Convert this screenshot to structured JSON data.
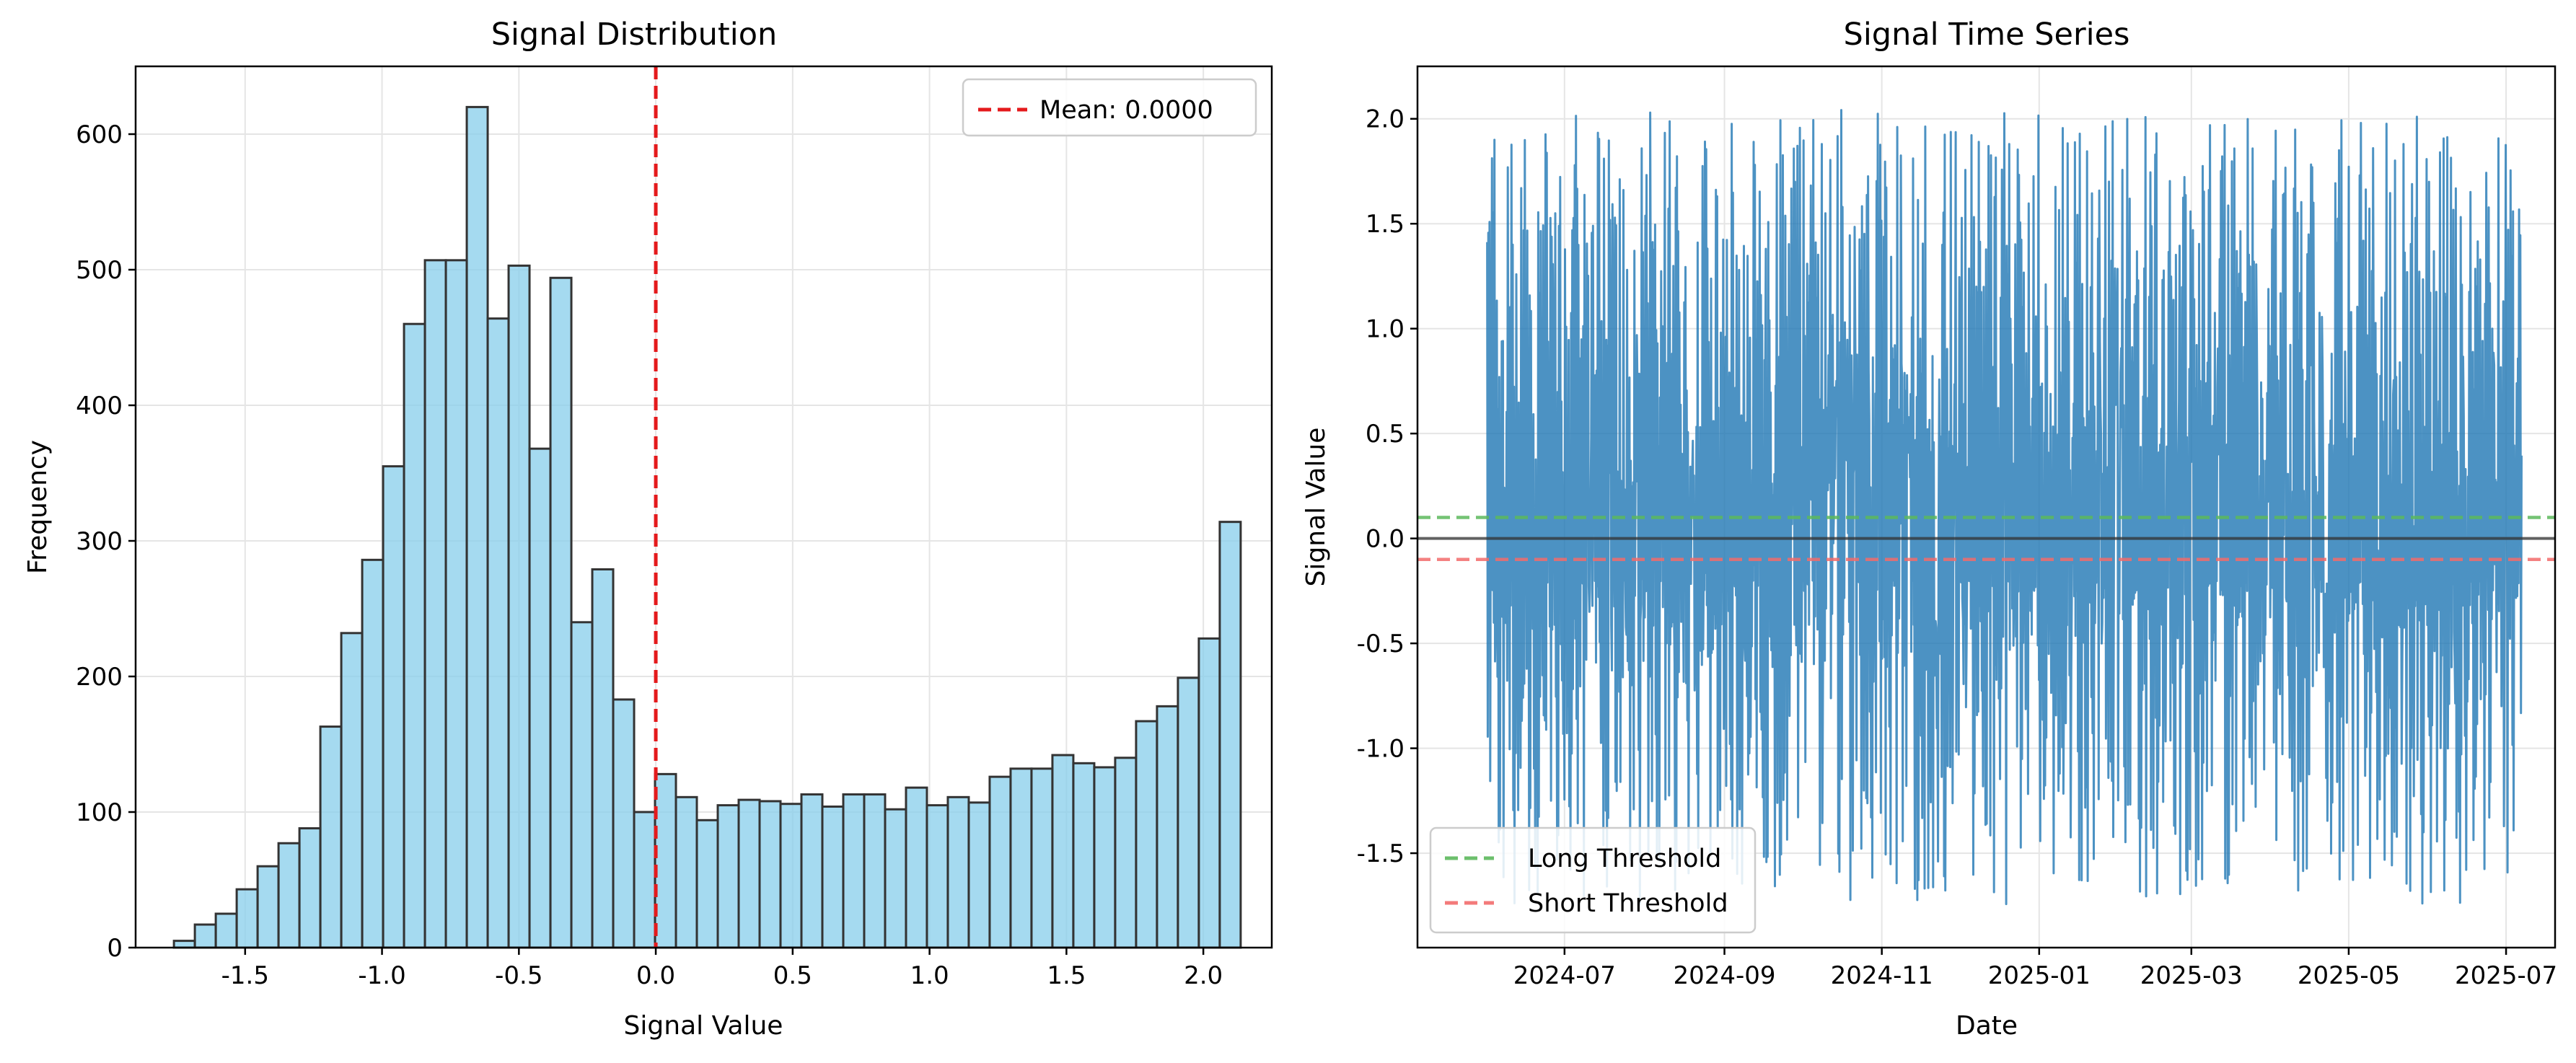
{
  "chart_data": [
    {
      "type": "bar",
      "title": "Signal Distribution",
      "xlabel": "Signal Value",
      "ylabel": "Frequency",
      "xlim": [
        -1.9,
        2.25
      ],
      "ylim": [
        0,
        650
      ],
      "xticks": [
        -1.5,
        -1.0,
        -0.5,
        0.0,
        0.5,
        1.0,
        1.5,
        2.0
      ],
      "xtick_labels": [
        "-1.5",
        "-1.0",
        "-0.5",
        "0.0",
        "0.5",
        "1.0",
        "1.5",
        "2.0"
      ],
      "yticks": [
        0,
        100,
        200,
        300,
        400,
        500,
        600
      ],
      "ytick_labels": [
        "0",
        "100",
        "200",
        "300",
        "400",
        "500",
        "600"
      ],
      "grid": true,
      "bar_color": "#87CEEB",
      "bar_edge_color": "#333333",
      "bin_start": -1.76,
      "bin_width": 0.0764,
      "values": [
        5,
        17,
        25,
        43,
        60,
        77,
        88,
        163,
        232,
        286,
        355,
        460,
        507,
        507,
        620,
        464,
        503,
        368,
        494,
        240,
        279,
        183,
        100,
        128,
        111,
        94,
        105,
        109,
        108,
        106,
        113,
        104,
        113,
        113,
        102,
        118,
        105,
        111,
        107,
        126,
        132,
        132,
        142,
        136,
        133,
        140,
        167,
        178,
        199,
        228,
        314
      ],
      "mean_line": {
        "x": 0.0,
        "label": "Mean: 0.0000",
        "color": "#e41a1c"
      },
      "legend": {
        "position": "upper right",
        "entries": [
          "Mean: 0.0000"
        ]
      }
    },
    {
      "type": "line",
      "title": "Signal Time Series",
      "xlabel": "Date",
      "ylabel": "Signal Value",
      "xlim": [
        "2024-05-05",
        "2025-07-20"
      ],
      "ylim": [
        -1.95,
        2.25
      ],
      "xticks": [
        "2024-07-01",
        "2024-09-01",
        "2024-11-01",
        "2025-01-01",
        "2025-03-01",
        "2025-05-01",
        "2025-07-01"
      ],
      "xtick_labels": [
        "2024-07",
        "2024-09",
        "2024-11",
        "2025-01",
        "2025-03",
        "2025-05",
        "2025-07"
      ],
      "yticks": [
        -1.5,
        -1.0,
        -0.5,
        0.0,
        0.5,
        1.0,
        1.5,
        2.0
      ],
      "ytick_labels": [
        "-1.5",
        "-1.0",
        "-0.5",
        "0.0",
        "0.5",
        "1.0",
        "1.5",
        "2.0"
      ],
      "grid": true,
      "series": [
        {
          "name": "",
          "color": "#1f77b4",
          "x_start": "2024-06-01",
          "x_end": "2025-07-07",
          "y_max": 2.05,
          "y_min": -1.75
        }
      ],
      "hlines": [
        {
          "y": 0.1,
          "name": "Long Threshold",
          "color": "#5cb85c",
          "style": "dashed"
        },
        {
          "y": -0.1,
          "name": "Short Threshold",
          "color": "#f26b6b",
          "style": "dashed"
        },
        {
          "y": 0.0,
          "name": "",
          "color": "#333333",
          "style": "solid"
        }
      ],
      "legend": {
        "position": "lower left",
        "entries": [
          "Long Threshold",
          "Short Threshold"
        ]
      }
    }
  ]
}
